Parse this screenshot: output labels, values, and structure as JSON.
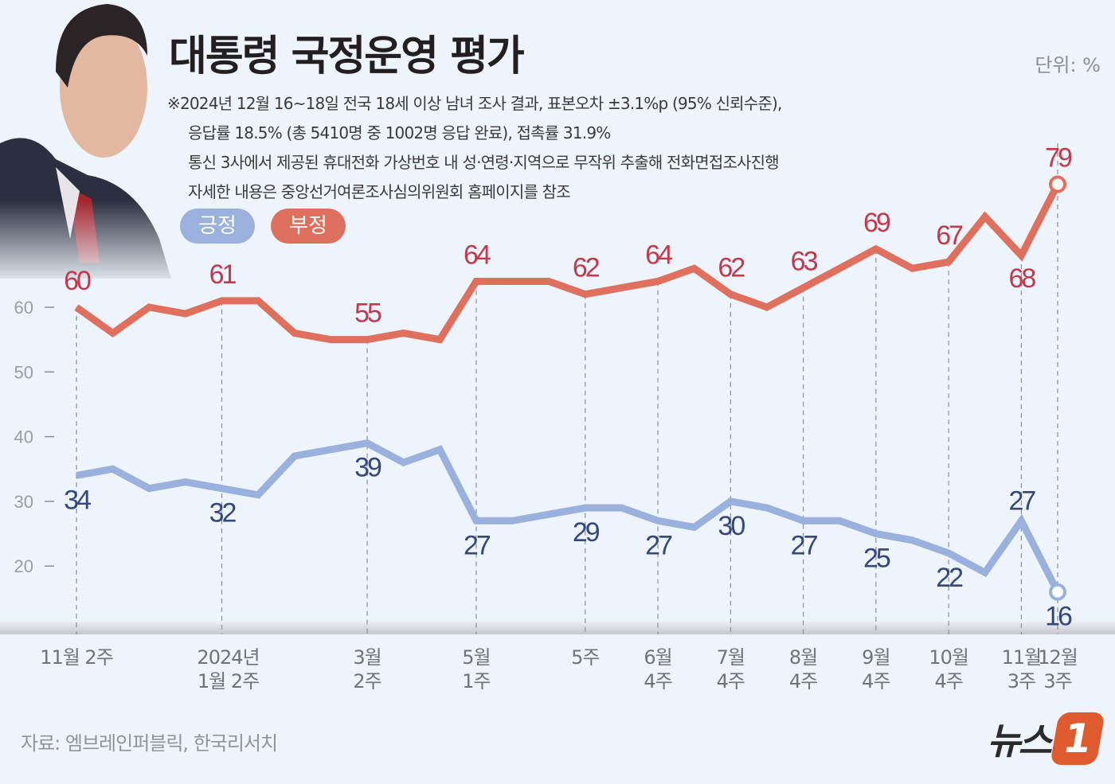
{
  "header": {
    "title": "대통령 국정운영 평가",
    "unit": "단위: %",
    "notes": [
      "※2024년 12월 16~18일 전국 18세 이상 남녀 조사 결과, 표본오차 ±3.1%p (95% 신뢰수준),",
      "응답률  18.5% (총 5410명 중 1002명 응답 완료), 접촉률 31.9%",
      "통신 3사에서 제공된 휴대전화 가상번호 내 성·연령·지역으로 무작위 추출해 전화면접조사진행",
      "자세한 내용은 중앙선거여론조사심의위원회 홈페이지를 참조"
    ]
  },
  "footer": {
    "source": "자료: 엠브레인퍼블릭, 한국리서치",
    "logo_text": "뉴스1"
  },
  "chart_data": {
    "type": "line",
    "title": "대통령 국정운영 평가",
    "ylabel": "",
    "ylim": [
      14,
      82
    ],
    "yticks": [
      20,
      30,
      40,
      50,
      60
    ],
    "grid": "dashed vertical lines at labeled periods",
    "legend_placement": "top-left",
    "x_tick_labels": [
      {
        "index": 0,
        "label": "11월 2주"
      },
      {
        "index": 4,
        "label": "2024년\n1월 2주"
      },
      {
        "index": 8,
        "label": "3월\n2주"
      },
      {
        "index": 11,
        "label": "5월\n1주"
      },
      {
        "index": 14,
        "label": "5주"
      },
      {
        "index": 16,
        "label": "6월\n4주"
      },
      {
        "index": 18,
        "label": "7월\n4주"
      },
      {
        "index": 20,
        "label": "8월\n4주"
      },
      {
        "index": 22,
        "label": "9월\n4주"
      },
      {
        "index": 24,
        "label": "10월\n4주"
      },
      {
        "index": 26,
        "label": "11월\n3주"
      },
      {
        "index": 27,
        "label": "12월\n3주"
      }
    ],
    "labeled_indices": [
      0,
      4,
      8,
      11,
      14,
      16,
      18,
      20,
      22,
      24,
      26,
      27
    ],
    "series": [
      {
        "name": "긍정",
        "color": "#9bb1dd",
        "label_color": "#34477e",
        "values": [
          34,
          35,
          32,
          33,
          32,
          31,
          37,
          38,
          39,
          36,
          38,
          27,
          27,
          28,
          29,
          29,
          27,
          26,
          30,
          29,
          27,
          27,
          25,
          24,
          22,
          19,
          27,
          16
        ]
      },
      {
        "name": "부정",
        "color": "#e0705e",
        "label_color": "#c23a4a",
        "values": [
          60,
          56,
          60,
          59,
          61,
          61,
          56,
          55,
          55,
          56,
          55,
          64,
          64,
          64,
          62,
          63,
          64,
          66,
          62,
          60,
          63,
          66,
          69,
          66,
          67,
          74,
          68,
          79
        ]
      }
    ]
  }
}
